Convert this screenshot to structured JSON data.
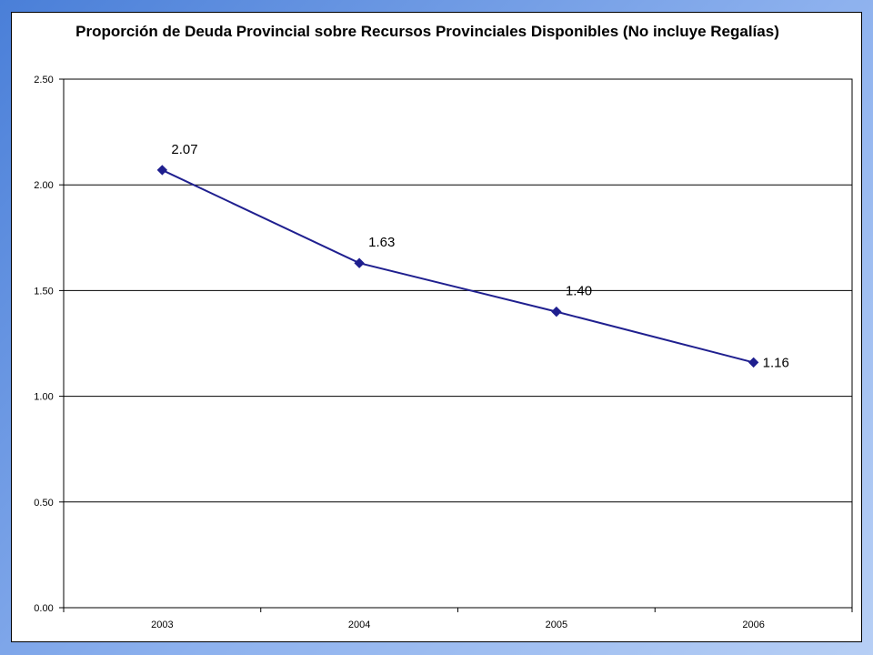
{
  "chart_data": {
    "type": "line",
    "title": "Proporción de Deuda Provincial sobre Recursos Provinciales Disponibles (No incluye Regalías)",
    "categories": [
      "2003",
      "2004",
      "2005",
      "2006"
    ],
    "series": [
      {
        "values": [
          2.07,
          1.63,
          1.4,
          1.16
        ],
        "labels": [
          "2.07",
          "1.63",
          "1.40",
          "1.16"
        ],
        "color": "#1f1f8f"
      }
    ],
    "ylim": [
      0,
      2.5
    ],
    "yticks": [
      "0.00",
      "0.50",
      "1.00",
      "1.50",
      "2.00",
      "2.50"
    ],
    "ytick_values": [
      0,
      0.5,
      1.0,
      1.5,
      2.0,
      2.5
    ],
    "grid": true,
    "legend": "none"
  }
}
